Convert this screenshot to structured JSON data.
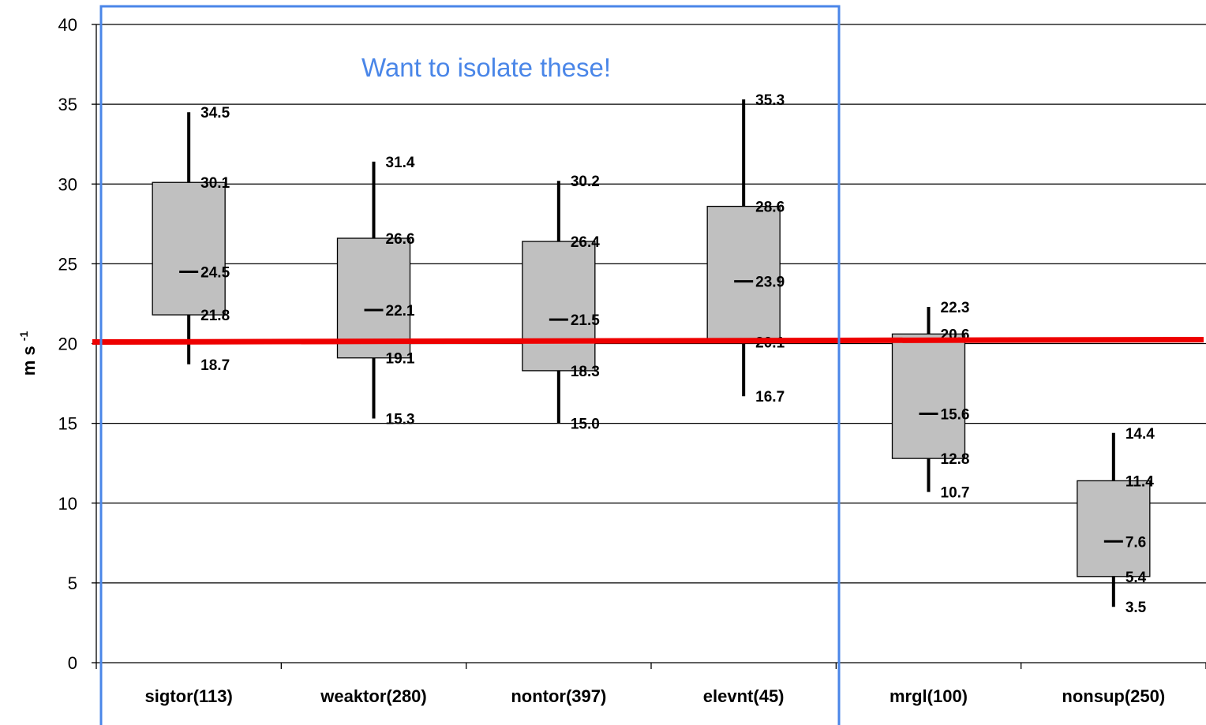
{
  "chart_data": {
    "type": "box",
    "ylabel_base": "m s",
    "ylabel_sup": "-1",
    "ylim": [
      0,
      40
    ],
    "yticks": [
      "0",
      "5",
      "10",
      "15",
      "20",
      "25",
      "30",
      "35",
      "40"
    ],
    "grid": true,
    "categories": [
      "sigtor(113)",
      "weaktor(280)",
      "nontor(397)",
      "elevnt(45)",
      "mrgl(100)",
      "nonsup(250)"
    ],
    "boxes": [
      {
        "min": 18.7,
        "q1": 21.8,
        "median": 24.5,
        "q3": 30.1,
        "max": 34.5,
        "labels": {
          "min": "18.7",
          "q1": "21.8",
          "median": "24.5",
          "q3": "30.1",
          "max": "34.5"
        }
      },
      {
        "min": 15.3,
        "q1": 19.1,
        "median": 22.1,
        "q3": 26.6,
        "max": 31.4,
        "labels": {
          "min": "15.3",
          "q1": "19.1",
          "median": "22.1",
          "q3": "26.6",
          "max": "31.4"
        }
      },
      {
        "min": 15.0,
        "q1": 18.3,
        "median": 21.5,
        "q3": 26.4,
        "max": 30.2,
        "labels": {
          "min": "15.0",
          "q1": "18.3",
          "median": "21.5",
          "q3": "26.4",
          "max": "30.2"
        }
      },
      {
        "min": 16.7,
        "q1": 20.1,
        "median": 23.9,
        "q3": 28.6,
        "max": 35.3,
        "labels": {
          "min": "16.7",
          "q1": "20.1",
          "median": "23.9",
          "q3": "28.6",
          "max": "35.3"
        }
      },
      {
        "min": 10.7,
        "q1": 12.8,
        "median": 15.6,
        "q3": 20.6,
        "max": 22.3,
        "labels": {
          "min": "10.7",
          "q1": "12.8",
          "median": "15.6",
          "q3": "20.6",
          "max": "22.3"
        }
      },
      {
        "min": 3.5,
        "q1": 5.4,
        "median": 7.6,
        "q3": 11.4,
        "max": 14.4,
        "labels": {
          "min": "3.5",
          "q1": "5.4",
          "median": "7.6",
          "q3": "11.4",
          "max": "14.4"
        }
      }
    ],
    "reference_line": {
      "y": 20,
      "color": "#ee0000"
    },
    "highlight": {
      "categories_from": 0,
      "categories_to": 3,
      "color": "#4a86e8"
    },
    "annotation": "Want to isolate these!"
  },
  "colors": {
    "box_fill": "#c0c0c0",
    "box_stroke": "#000000",
    "grid": "#000000"
  }
}
